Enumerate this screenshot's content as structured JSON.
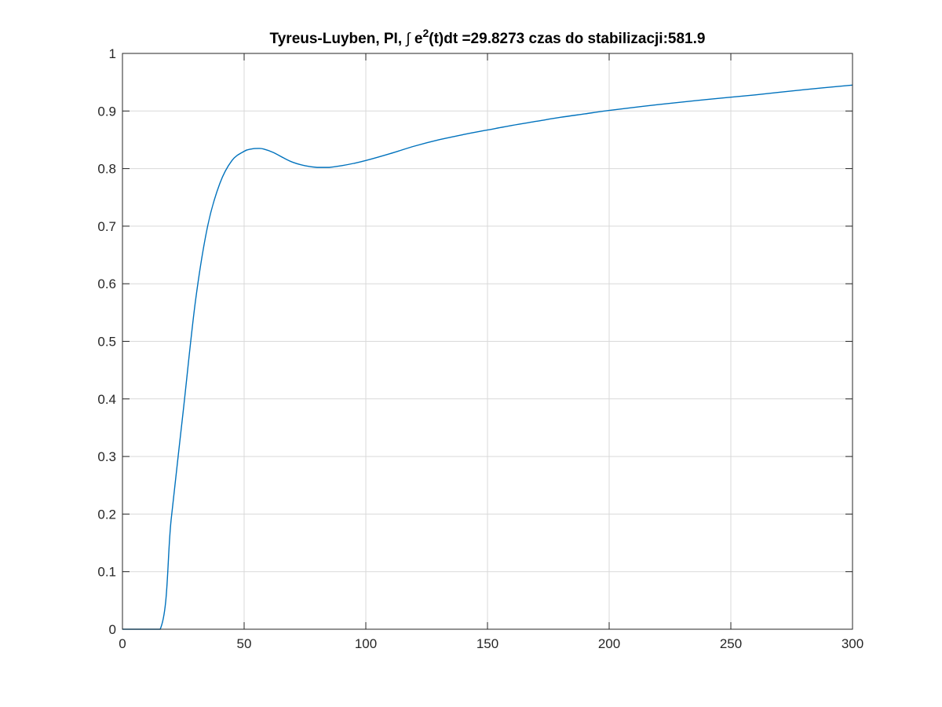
{
  "chart_data": {
    "type": "line",
    "title": {
      "prefix": "Tyreus-Luyben, PI, ",
      "integral_symbol": "∫",
      "e_term": " e",
      "exponent": "2",
      "suffix": "(t)dt =29.8273 czas do stabilizacji:581.9"
    },
    "xlabel": "",
    "ylabel": "",
    "xlim": [
      0,
      300
    ],
    "ylim": [
      0,
      1
    ],
    "x_ticks": [
      0,
      50,
      100,
      150,
      200,
      250,
      300
    ],
    "y_ticks": [
      0,
      0.1,
      0.2,
      0.3,
      0.4,
      0.5,
      0.6,
      0.7,
      0.8,
      0.9,
      1
    ],
    "x_tick_labels": [
      "0",
      "50",
      "100",
      "150",
      "200",
      "250",
      "300"
    ],
    "y_tick_labels": [
      "0",
      "0.1",
      "0.2",
      "0.3",
      "0.4",
      "0.5",
      "0.6",
      "0.7",
      "0.8",
      "0.9",
      "1"
    ],
    "grid": true,
    "series": [
      {
        "color": "#0072bd",
        "x": [
          0,
          15.5,
          20,
          25,
          30,
          35,
          40,
          45,
          50,
          53,
          56,
          58,
          62,
          66,
          70,
          75,
          80,
          85,
          90,
          95,
          100,
          110,
          120,
          130,
          140,
          150,
          160,
          170,
          180,
          190,
          200,
          220,
          240,
          260,
          280,
          300
        ],
        "y": [
          0,
          0,
          0.19,
          0.38,
          0.57,
          0.7,
          0.774,
          0.814,
          0.83,
          0.834,
          0.835,
          0.834,
          0.828,
          0.819,
          0.811,
          0.805,
          0.802,
          0.802,
          0.805,
          0.809,
          0.814,
          0.826,
          0.839,
          0.85,
          0.859,
          0.867,
          0.875,
          0.882,
          0.889,
          0.895,
          0.901,
          0.911,
          0.92,
          0.928,
          0.937,
          0.945
        ]
      }
    ]
  }
}
